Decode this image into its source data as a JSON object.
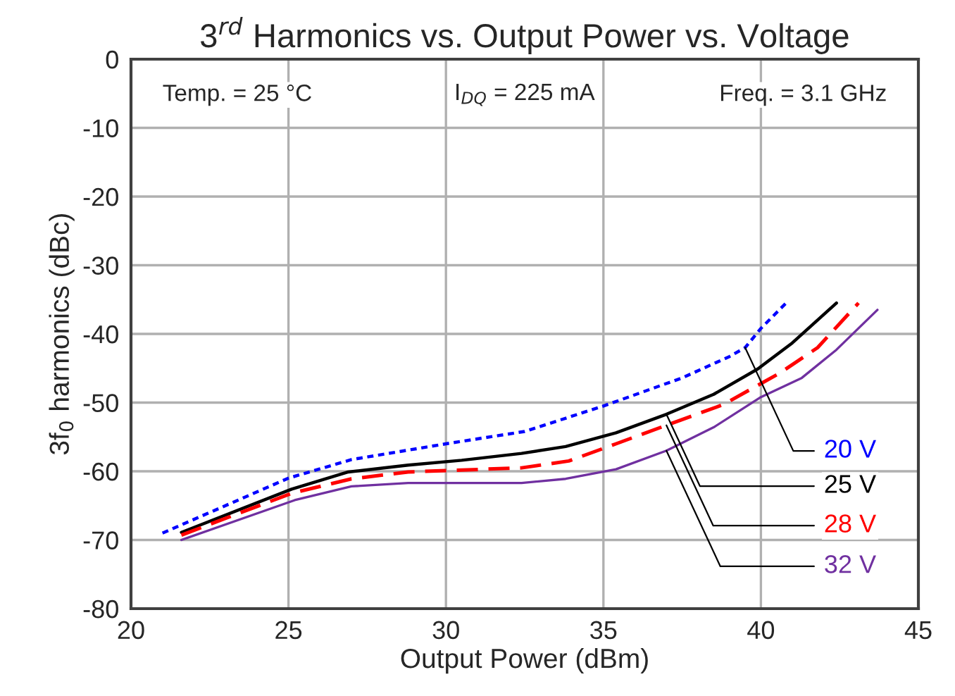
{
  "chart_data": {
    "type": "line",
    "title": "3$^{rd}$ Harmonics vs. Output Power vs. Voltage",
    "xlabel": "Output Power (dBm)",
    "ylabel": "3f$_{0}$ harmonics (dBc)",
    "xlim": [
      20,
      45
    ],
    "xticks": [
      20,
      25,
      30,
      35,
      40,
      45
    ],
    "ylim": [
      -80,
      0
    ],
    "yticks": [
      0,
      -10,
      -20,
      -30,
      -40,
      -50,
      -60,
      -70,
      -80
    ],
    "grid": true,
    "legend": false,
    "annotations": [
      "Temp. = 25 °C",
      "I$_{DQ}$ = 225 mA",
      "Freq. = 3.1 GHz"
    ],
    "series": [
      {
        "name": "20 V",
        "color": "#0000ff",
        "line_style": "dotted",
        "x": [
          21,
          25,
          27,
          30,
          32.5,
          35,
          37.5,
          39,
          39.5,
          40,
          40.8
        ],
        "values": [
          -69,
          -61,
          -58.3,
          -56,
          -54.2,
          -50.5,
          -46.4,
          -43.3,
          -42,
          -39.2,
          -35.5
        ]
      },
      {
        "name": "25 V",
        "color": "#000000",
        "line_style": "solid",
        "x": [
          21.6,
          25.1,
          26.9,
          28.8,
          30.5,
          32.4,
          33.8,
          35.4,
          37,
          38.5,
          39.9,
          41,
          42.4
        ],
        "values": [
          -68.9,
          -62.6,
          -60.1,
          -59.1,
          -58.4,
          -57.4,
          -56.4,
          -54.4,
          -51.7,
          -48.8,
          -45.1,
          -41.3,
          -35.5
        ]
      },
      {
        "name": "28 V",
        "color": "#ff0000",
        "line_style": "dashed",
        "x": [
          21.6,
          25.1,
          27,
          28.8,
          32.4,
          33.9,
          35.4,
          37,
          38.8,
          40.6,
          41.8,
          43.1
        ],
        "values": [
          -69.3,
          -63.2,
          -61.1,
          -60.1,
          -59.5,
          -58.5,
          -56,
          -53.3,
          -50.3,
          -45.7,
          -42,
          -35.5
        ]
      },
      {
        "name": "32 V",
        "color": "#7030a0",
        "line_style": "solid",
        "x": [
          21.6,
          25.2,
          27,
          28.8,
          32.4,
          33.8,
          35.4,
          37,
          38.5,
          40,
          41.3,
          42.4,
          43.7
        ],
        "values": [
          -70,
          -64.2,
          -62.2,
          -61.7,
          -61.7,
          -61.1,
          -59.7,
          -57,
          -53.6,
          -49.2,
          -46.4,
          -42.3,
          -36.5
        ]
      }
    ]
  }
}
